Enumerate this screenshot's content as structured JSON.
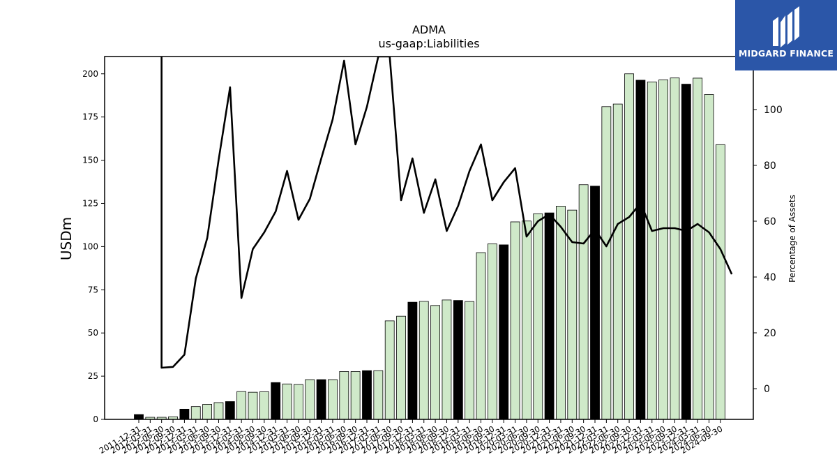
{
  "brand": {
    "name": "MIDGARD FINANCE",
    "bg_color": "#2b56a8"
  },
  "chart_data": {
    "type": "bar",
    "title": "ADMA",
    "subtitle": "us-gaap:Liabilities",
    "ylabel": "USDm",
    "y2label": "Percentage of Assets",
    "ylim": [
      0,
      210
    ],
    "y2lim": [
      -11,
      119
    ],
    "yticks": [
      0,
      25,
      50,
      75,
      100,
      125,
      150,
      175,
      200
    ],
    "y2ticks": [
      0,
      20,
      40,
      60,
      80,
      100
    ],
    "grid": false,
    "categories": [
      "2011-12-31",
      "2012-03-31",
      "2012-06-30",
      "2012-09-30",
      "2012-12-31",
      "2013-03-31",
      "2013-06-30",
      "2013-09-30",
      "2013-12-31",
      "2014-03-31",
      "2014-06-30",
      "2014-09-30",
      "2014-12-31",
      "2015-03-31",
      "2015-06-30",
      "2015-09-30",
      "2015-12-31",
      "2016-03-31",
      "2016-06-30",
      "2016-09-30",
      "2016-12-31",
      "2017-03-31",
      "2017-06-30",
      "2017-09-30",
      "2017-12-31",
      "2018-03-31",
      "2018-06-30",
      "2018-09-30",
      "2018-12-31",
      "2019-03-31",
      "2019-06-30",
      "2019-09-30",
      "2019-12-31",
      "2020-03-31",
      "2020-06-30",
      "2020-09-30",
      "2020-12-31",
      "2021-03-31",
      "2021-06-30",
      "2021-09-30",
      "2021-12-31",
      "2022-03-31",
      "2022-06-30",
      "2022-09-30",
      "2022-12-31",
      "2023-03-31",
      "2023-06-30",
      "2023-09-30",
      "2023-12-31",
      "2024-03-31",
      "2024-06-30",
      "2024-09-30"
    ],
    "series": [
      {
        "kind": "bar",
        "axis": "left",
        "values": [
          2.8,
          1.2,
          1.2,
          1.5,
          5.9,
          7.4,
          8.7,
          9.7,
          10.3,
          16.1,
          15.7,
          16.0,
          21.3,
          20.5,
          20.2,
          23.0,
          23.0,
          23.0,
          27.7,
          27.7,
          28.2,
          28.2,
          57.0,
          59.7,
          67.8,
          68.3,
          65.9,
          69.1,
          68.8,
          68.2,
          96.5,
          101.6,
          101.0,
          114.3,
          114.8,
          119.0,
          119.5,
          123.4,
          121.1,
          135.8,
          135.0,
          181.0,
          182.5,
          200.0,
          196.3,
          195.3,
          196.5,
          197.6,
          194.0,
          197.5,
          188.0,
          159.0
        ],
        "colors_by_category": [
          "black",
          "green",
          "green",
          "green",
          "black",
          "green",
          "green",
          "green",
          "black",
          "green",
          "green",
          "green",
          "black",
          "green",
          "green",
          "green",
          "black",
          "green",
          "green",
          "green",
          "black",
          "green",
          "green",
          "green",
          "black",
          "green",
          "green",
          "green",
          "black",
          "green",
          "green",
          "green",
          "black",
          "green",
          "green",
          "green",
          "black",
          "green",
          "green",
          "green",
          "black",
          "green",
          "green",
          "green",
          "black",
          "green",
          "green",
          "green",
          "black",
          "green",
          "green",
          "green"
        ]
      },
      {
        "kind": "line",
        "axis": "right",
        "values": [
          null,
          7.5,
          7.8,
          12.2,
          39.5,
          54.0,
          82.0,
          108.0,
          32.5,
          50.0,
          56.0,
          63.5,
          78.0,
          60.5,
          68.0,
          82.5,
          96.5,
          117.5,
          87.5,
          101.0,
          119.0,
          119.0,
          67.5,
          82.5,
          63.0,
          75.0,
          56.5,
          65.5,
          78.0,
          87.5,
          67.5,
          74.0,
          79.0,
          54.5,
          60.0,
          62.5,
          58.0,
          52.5,
          52.0,
          57.0,
          51.0,
          59.0,
          61.5,
          66.5,
          56.5,
          57.5,
          57.5,
          56.5,
          59.0,
          56.0,
          50.0,
          41.0
        ],
        "color": "#000000",
        "note_first": "line enters from above the plot top at first category"
      }
    ],
    "colors": {
      "bar_green": "#cfe9c9",
      "bar_black": "#000000",
      "edge": "#000000"
    }
  }
}
